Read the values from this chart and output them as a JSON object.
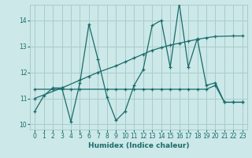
{
  "xlabel": "Humidex (Indice chaleur)",
  "bg_color": "#cce8e8",
  "line_color": "#1a6b6b",
  "grid_color": "#a8cccc",
  "xlim": [
    -0.5,
    23.5
  ],
  "ylim": [
    9.8,
    14.6
  ],
  "xticks": [
    0,
    1,
    2,
    3,
    4,
    5,
    6,
    7,
    8,
    9,
    10,
    11,
    12,
    13,
    14,
    15,
    16,
    17,
    18,
    19,
    20,
    21,
    22,
    23
  ],
  "yticks": [
    10,
    11,
    12,
    13,
    14
  ],
  "line1_x": [
    0,
    1,
    2,
    3,
    4,
    5,
    6,
    7,
    8,
    9,
    10,
    11,
    12,
    13,
    14,
    15,
    16,
    17,
    18,
    19,
    20,
    21,
    22,
    23
  ],
  "line1_y": [
    10.5,
    11.1,
    11.4,
    11.4,
    10.1,
    11.6,
    13.85,
    12.5,
    11.05,
    10.15,
    10.5,
    11.5,
    12.1,
    13.8,
    14.0,
    12.2,
    14.65,
    12.2,
    13.3,
    11.5,
    11.6,
    10.85,
    10.85,
    10.85
  ],
  "line2_x": [
    0,
    3,
    5,
    6,
    7,
    9,
    10,
    11,
    12,
    13,
    14,
    15,
    16,
    17,
    18,
    19,
    20,
    22,
    23
  ],
  "line2_y": [
    11.0,
    11.4,
    11.7,
    11.85,
    12.0,
    12.25,
    12.4,
    12.55,
    12.7,
    12.85,
    12.95,
    13.05,
    13.12,
    13.2,
    13.27,
    13.33,
    13.38,
    13.4,
    13.4
  ],
  "line3_x": [
    0,
    2,
    3,
    4,
    5,
    8,
    9,
    10,
    11,
    12,
    13,
    14,
    15,
    16,
    17,
    18,
    19,
    20,
    21,
    22,
    23
  ],
  "line3_y": [
    11.35,
    11.35,
    11.35,
    11.35,
    11.35,
    11.35,
    11.35,
    11.35,
    11.35,
    11.35,
    11.35,
    11.35,
    11.35,
    11.35,
    11.35,
    11.35,
    11.35,
    11.5,
    10.85,
    10.85,
    10.85
  ]
}
